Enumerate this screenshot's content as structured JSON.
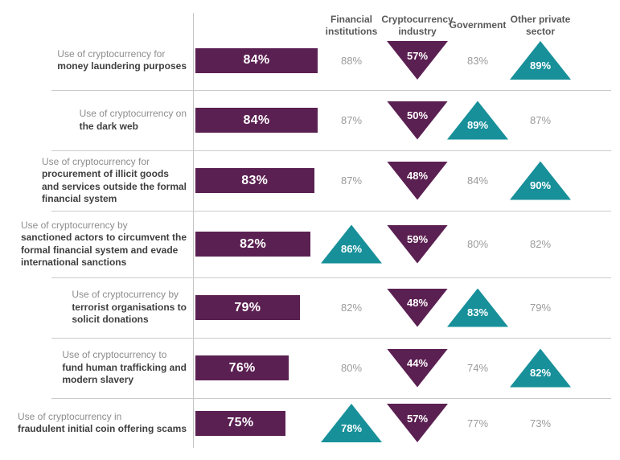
{
  "chart_data": {
    "type": "bar",
    "title": "",
    "columns": [
      "Financial institutions",
      "Cryptocurrency industry",
      "Government",
      "Other private sector"
    ],
    "bar_scale": {
      "domain_min": 50,
      "domain_max": 84
    },
    "colors": {
      "purple": "#5b2052",
      "teal": "#17909a",
      "plain_value_text": "#9b9b9b",
      "bar_text": "#ffffff"
    },
    "rows": [
      {
        "label_regular": "Use of cryptocurrency for",
        "label_bold": "money laundering purposes",
        "bar": {
          "value": 84,
          "display": "84%"
        },
        "sectors": [
          {
            "display": "88%",
            "marker": "none"
          },
          {
            "display": "57%",
            "marker": "down"
          },
          {
            "display": "83%",
            "marker": "none"
          },
          {
            "display": "89%",
            "marker": "up"
          }
        ]
      },
      {
        "label_regular": "Use of cryptocurrency on",
        "label_bold": "the dark web",
        "bar": {
          "value": 84,
          "display": "84%"
        },
        "sectors": [
          {
            "display": "87%",
            "marker": "none"
          },
          {
            "display": "50%",
            "marker": "down"
          },
          {
            "display": "89%",
            "marker": "up"
          },
          {
            "display": "87%",
            "marker": "none"
          }
        ]
      },
      {
        "label_regular": "Use of cryptocurrency for",
        "label_bold": "procurement of illicit goods\nand services outside the formal\nfinancial system",
        "bar": {
          "value": 83,
          "display": "83%"
        },
        "sectors": [
          {
            "display": "87%",
            "marker": "none"
          },
          {
            "display": "48%",
            "marker": "down"
          },
          {
            "display": "84%",
            "marker": "none"
          },
          {
            "display": "90%",
            "marker": "up"
          }
        ]
      },
      {
        "label_regular": "Use of cryptocurrency by",
        "label_bold": "sanctioned actors to circumvent the\nformal financial system and evade\ninternational sanctions",
        "bar": {
          "value": 82,
          "display": "82%"
        },
        "sectors": [
          {
            "display": "86%",
            "marker": "up"
          },
          {
            "display": "59%",
            "marker": "down"
          },
          {
            "display": "80%",
            "marker": "none"
          },
          {
            "display": "82%",
            "marker": "none"
          }
        ]
      },
      {
        "label_regular": "Use of cryptocurrency by",
        "label_bold": "terrorist organisations to\nsolicit donations",
        "bar": {
          "value": 79,
          "display": "79%"
        },
        "sectors": [
          {
            "display": "82%",
            "marker": "none"
          },
          {
            "display": "48%",
            "marker": "down"
          },
          {
            "display": "83%",
            "marker": "up"
          },
          {
            "display": "79%",
            "marker": "none"
          }
        ]
      },
      {
        "label_regular": "Use of cryptocurrency to",
        "label_bold": "fund human trafficking and\nmodern slavery",
        "bar": {
          "value": 76,
          "display": "76%"
        },
        "sectors": [
          {
            "display": "80%",
            "marker": "none"
          },
          {
            "display": "44%",
            "marker": "down"
          },
          {
            "display": "74%",
            "marker": "none"
          },
          {
            "display": "82%",
            "marker": "up"
          }
        ]
      },
      {
        "label_regular": "Use of cryptocurrency in",
        "label_bold": "fraudulent initial coin offering scams",
        "bar": {
          "value": 75,
          "display": "75%"
        },
        "sectors": [
          {
            "display": "78%",
            "marker": "up"
          },
          {
            "display": "57%",
            "marker": "down"
          },
          {
            "display": "77%",
            "marker": "none"
          },
          {
            "display": "73%",
            "marker": "none"
          }
        ]
      }
    ]
  }
}
